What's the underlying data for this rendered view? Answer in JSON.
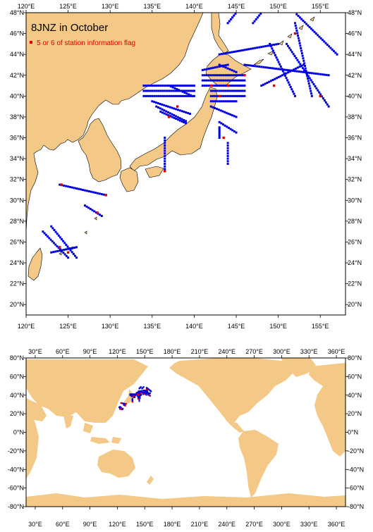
{
  "title": "8JNZ in October",
  "legend": "5 or 6 of station information flag",
  "colors": {
    "land": "#F4C987",
    "normal_station": "#0000e0",
    "flag_station": "#e00000",
    "ocean": "#ffffff"
  },
  "regional_map": {
    "lon_ticks": [
      "120°E",
      "125°E",
      "130°E",
      "135°E",
      "140°E",
      "145°E",
      "150°E",
      "155°E"
    ],
    "lat_ticks": [
      "20°N",
      "22°N",
      "24°N",
      "26°N",
      "28°N",
      "30°N",
      "32°N",
      "34°N",
      "36°N",
      "38°N",
      "40°N",
      "42°N",
      "44°N",
      "46°N",
      "48°N"
    ],
    "lon_range": [
      120,
      158
    ],
    "lat_range": [
      19,
      48
    ]
  },
  "global_map": {
    "lon_ticks": [
      "30°E",
      "60°E",
      "90°E",
      "120°E",
      "150°E",
      "180°E",
      "210°E",
      "240°E",
      "270°E",
      "300°E",
      "330°E",
      "360°E"
    ],
    "lat_ticks": [
      "80°N",
      "60°N",
      "40°N",
      "20°N",
      "0°N",
      "-20°N",
      "-40°N",
      "-60°N",
      "-80°N"
    ],
    "lon_range": [
      20,
      370
    ],
    "lat_range": [
      -80,
      80
    ]
  }
}
